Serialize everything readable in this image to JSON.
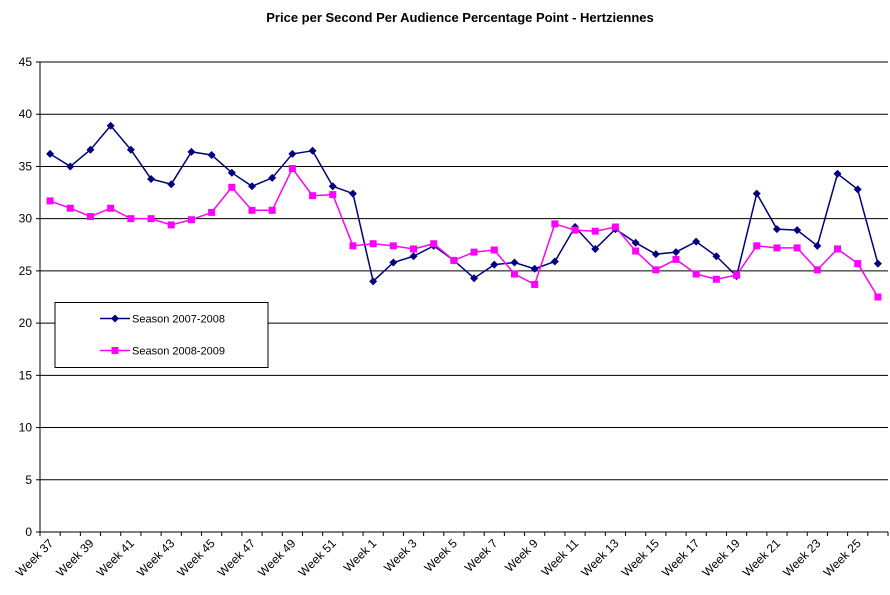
{
  "chart_data": {
    "type": "line",
    "title": "Price per Second Per Audience Percentage Point  - Hertziennes",
    "categories": [
      "Week 37",
      null,
      "Week 39",
      null,
      "Week 41",
      null,
      "Week 43",
      null,
      "Week 45",
      null,
      "Week 47",
      null,
      "Week 49",
      null,
      "Week 51",
      null,
      "Week 1",
      null,
      "Week 3",
      null,
      "Week 5",
      null,
      "Week 7",
      null,
      "Week 9",
      null,
      "Week 11",
      null,
      "Week 13",
      null,
      "Week 15",
      null,
      "Week 17",
      null,
      "Week 19",
      null,
      "Week 21",
      null,
      "Week 23",
      null,
      "Week 25",
      null
    ],
    "series": [
      {
        "name": "Season 2007-2008",
        "color": "#000080",
        "marker": "diamond",
        "values": [
          36.2,
          35.0,
          36.6,
          38.9,
          36.6,
          33.8,
          33.3,
          36.4,
          36.1,
          34.4,
          33.1,
          33.9,
          36.2,
          36.5,
          33.1,
          32.4,
          24.0,
          25.8,
          26.4,
          27.4,
          26.0,
          24.3,
          25.6,
          25.8,
          25.2,
          25.9,
          29.2,
          27.1,
          29.0,
          27.7,
          26.6,
          26.8,
          27.8,
          26.4,
          24.5,
          32.4,
          29.0,
          28.9,
          27.4,
          34.3,
          32.8,
          25.7
        ]
      },
      {
        "name": "Season 2008-2009",
        "color": "#ff00ff",
        "marker": "square",
        "values": [
          31.7,
          31.0,
          30.2,
          31.0,
          30.0,
          30.0,
          29.4,
          29.9,
          30.6,
          33.0,
          30.8,
          30.8,
          34.8,
          32.2,
          32.3,
          27.4,
          27.6,
          27.4,
          27.1,
          27.6,
          26.0,
          26.8,
          27.0,
          24.7,
          23.7,
          29.5,
          28.9,
          28.8,
          29.2,
          26.9,
          25.1,
          26.1,
          24.7,
          24.2,
          24.6,
          27.4,
          27.2,
          27.2,
          25.1,
          27.1,
          25.7,
          22.5
        ]
      }
    ],
    "ylim": [
      0,
      45
    ],
    "yticks": [
      0,
      5,
      10,
      15,
      20,
      25,
      30,
      35,
      40,
      45
    ],
    "grid": true,
    "legend": "center-left"
  }
}
